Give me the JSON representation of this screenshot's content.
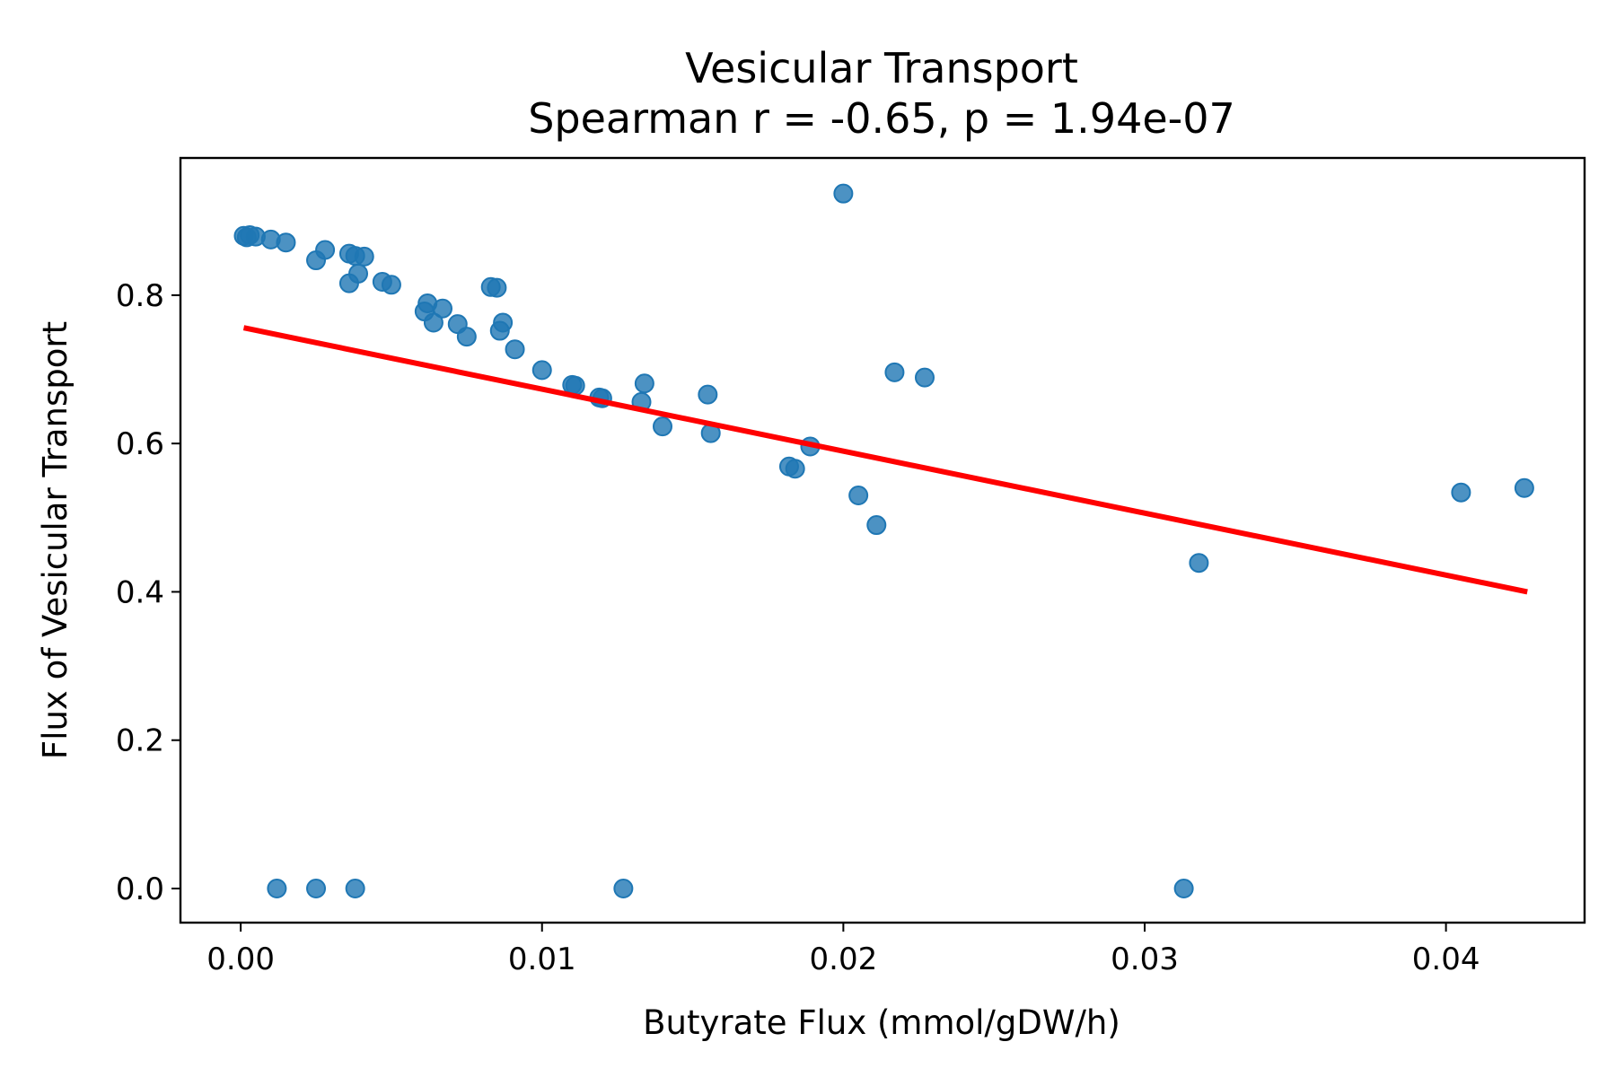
{
  "chart_data": {
    "type": "scatter",
    "title": "Vesicular Transport",
    "subtitle": "Spearman r = -0.65, p = 1.94e-07",
    "xlabel": "Butyrate Flux (mmol/gDW/h)",
    "ylabel": "Flux of Vesicular Transport",
    "xlim": [
      -0.002,
      0.0446
    ],
    "ylim": [
      -0.046,
      0.985
    ],
    "xticks": [
      0.0,
      0.01,
      0.02,
      0.03,
      0.04
    ],
    "xtick_labels": [
      "0.00",
      "0.01",
      "0.02",
      "0.03",
      "0.04"
    ],
    "yticks": [
      0.0,
      0.2,
      0.4,
      0.6,
      0.8
    ],
    "ytick_labels": [
      "0.0",
      "0.2",
      "0.4",
      "0.6",
      "0.8"
    ],
    "grid": false,
    "colors": {
      "points": "#1f77b4",
      "fit_line": "#ff0000"
    },
    "points": [
      {
        "x": 0.0001,
        "y": 0.88
      },
      {
        "x": 0.0002,
        "y": 0.878
      },
      {
        "x": 0.0003,
        "y": 0.881
      },
      {
        "x": 0.0005,
        "y": 0.879
      },
      {
        "x": 0.001,
        "y": 0.875
      },
      {
        "x": 0.0015,
        "y": 0.871
      },
      {
        "x": 0.0025,
        "y": 0.847
      },
      {
        "x": 0.0028,
        "y": 0.861
      },
      {
        "x": 0.0036,
        "y": 0.856
      },
      {
        "x": 0.0038,
        "y": 0.853
      },
      {
        "x": 0.0041,
        "y": 0.852
      },
      {
        "x": 0.0039,
        "y": 0.829
      },
      {
        "x": 0.0036,
        "y": 0.816
      },
      {
        "x": 0.0047,
        "y": 0.818
      },
      {
        "x": 0.005,
        "y": 0.814
      },
      {
        "x": 0.0062,
        "y": 0.789
      },
      {
        "x": 0.0061,
        "y": 0.778
      },
      {
        "x": 0.0067,
        "y": 0.782
      },
      {
        "x": 0.0064,
        "y": 0.763
      },
      {
        "x": 0.0072,
        "y": 0.761
      },
      {
        "x": 0.0075,
        "y": 0.744
      },
      {
        "x": 0.0083,
        "y": 0.811
      },
      {
        "x": 0.0085,
        "y": 0.81
      },
      {
        "x": 0.0087,
        "y": 0.763
      },
      {
        "x": 0.0086,
        "y": 0.752
      },
      {
        "x": 0.0091,
        "y": 0.727
      },
      {
        "x": 0.01,
        "y": 0.699
      },
      {
        "x": 0.011,
        "y": 0.679
      },
      {
        "x": 0.0111,
        "y": 0.678
      },
      {
        "x": 0.0119,
        "y": 0.662
      },
      {
        "x": 0.012,
        "y": 0.661
      },
      {
        "x": 0.0134,
        "y": 0.681
      },
      {
        "x": 0.0133,
        "y": 0.656
      },
      {
        "x": 0.014,
        "y": 0.623
      },
      {
        "x": 0.0155,
        "y": 0.666
      },
      {
        "x": 0.0156,
        "y": 0.614
      },
      {
        "x": 0.0182,
        "y": 0.569
      },
      {
        "x": 0.0184,
        "y": 0.566
      },
      {
        "x": 0.0189,
        "y": 0.596
      },
      {
        "x": 0.02,
        "y": 0.937
      },
      {
        "x": 0.0205,
        "y": 0.53
      },
      {
        "x": 0.0211,
        "y": 0.49
      },
      {
        "x": 0.0217,
        "y": 0.696
      },
      {
        "x": 0.0227,
        "y": 0.689
      },
      {
        "x": 0.0318,
        "y": 0.439
      },
      {
        "x": 0.0405,
        "y": 0.534
      },
      {
        "x": 0.0426,
        "y": 0.54
      },
      {
        "x": 0.0012,
        "y": 0.0
      },
      {
        "x": 0.0025,
        "y": 0.0
      },
      {
        "x": 0.0038,
        "y": 0.0
      },
      {
        "x": 0.0127,
        "y": 0.0
      },
      {
        "x": 0.0313,
        "y": 0.0
      }
    ],
    "fit_line": {
      "x": [
        0.0001,
        0.0427
      ],
      "y": [
        0.756,
        0.4
      ]
    }
  }
}
